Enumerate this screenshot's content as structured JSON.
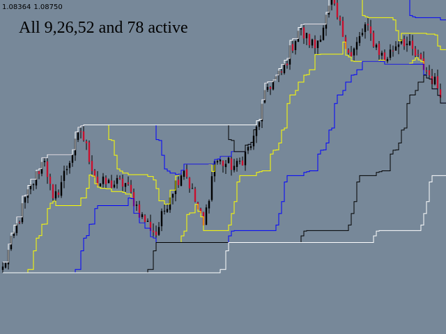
{
  "window": {
    "ohlc_readout": {
      "bid": "1.08364",
      "ask": "1.08750"
    },
    "caption": "All 9,26,52 and 78 active"
  },
  "colors": {
    "background": "#778899",
    "bull_candle": "#000000",
    "bear_candle": "#C8102E",
    "wick": "#000000",
    "period_9": "#FFFF00",
    "period_26": "#0000FF",
    "period_52": "#000000",
    "period_78": "#FFFFFF"
  },
  "chart_data": {
    "type": "candlestick",
    "candles": 158,
    "price_range": [
      1.07,
      1.17
    ],
    "price_path": [
      [
        0,
        1.0895
      ],
      [
        8,
        1.11
      ],
      [
        15,
        1.123
      ],
      [
        18,
        1.109
      ],
      [
        28,
        1.131
      ],
      [
        34,
        1.115
      ],
      [
        44,
        1.115
      ],
      [
        50,
        1.105
      ],
      [
        55,
        1.1
      ],
      [
        60,
        1.112
      ],
      [
        65,
        1.12
      ],
      [
        72,
        1.102
      ],
      [
        76,
        1.122
      ],
      [
        84,
        1.12
      ],
      [
        90,
        1.128
      ],
      [
        95,
        1.144
      ],
      [
        100,
        1.148
      ],
      [
        106,
        1.161
      ],
      [
        112,
        1.156
      ],
      [
        118,
        1.169
      ],
      [
        125,
        1.153
      ],
      [
        130,
        1.162
      ],
      [
        137,
        1.152
      ],
      [
        143,
        1.159
      ],
      [
        150,
        1.151
      ],
      [
        157,
        1.143
      ]
    ],
    "series": [
      {
        "name": "9",
        "color": "yellow",
        "line": "highest-high / lowest-low bands"
      },
      {
        "name": "26",
        "color": "blue",
        "line": "highest-high / lowest-low bands"
      },
      {
        "name": "52",
        "color": "black",
        "line": "highest-high / lowest-low bands"
      },
      {
        "name": "78",
        "color": "white",
        "line": "highest-high / lowest-low bands"
      }
    ]
  }
}
